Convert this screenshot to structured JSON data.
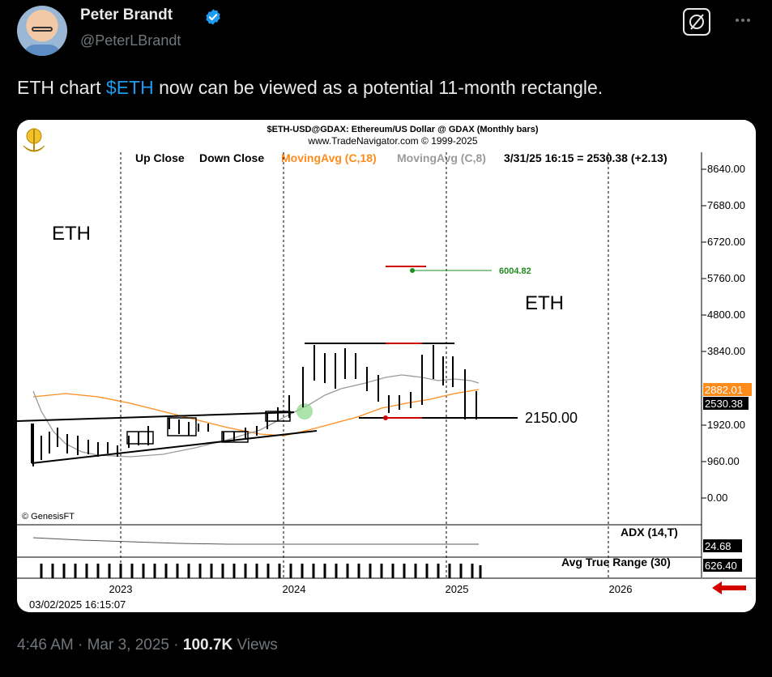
{
  "author": {
    "name": "Peter Brandt",
    "handle": "@PeterLBrandt"
  },
  "tweet": {
    "text_before": "ETH chart ",
    "cashtag": "$ETH",
    "text_after": " now can be viewed as a potential 11-month rectangle."
  },
  "meta": {
    "time": "4:46 AM",
    "date": "Mar 3, 2025",
    "views_count": "100.7K",
    "views_label": "Views",
    "sep": "·"
  },
  "icons": {
    "verified": "verified-badge-icon",
    "grok": "grok-icon",
    "more": "more-icon",
    "logo": "tradenavigator-logo-icon",
    "arrow": "red-left-arrow-icon"
  },
  "colors": {
    "accent": "#1d9bf0",
    "ma18": "#ff8c1a",
    "ma8": "#9a9a9a",
    "target": "#cc0000",
    "target_label": "#1f8c1f"
  },
  "chart": {
    "header_line1": "$ETH-USD@GDAX:  Ethereum/US Dollar @ GDAX  (Monthly bars)",
    "header_line2": "www.TradeNavigator.com © 1999-2025",
    "legend_up_close": "Up Close",
    "legend_down_close": "Down Close",
    "legend_ma18": "MovingAvg (C,18)",
    "legend_ma8": "MovingAvg (C,8)",
    "legend_last": "3/31/25 16:15 = 2530.38 (+2.13)",
    "label_eth_left": "ETH",
    "label_eth_right": "ETH",
    "level_label": "2150.00",
    "target_label": "6004.82",
    "copyright": "© GenesisFT",
    "adx_label": "ADX (14,T)",
    "adx_value": "24.68",
    "atr_label": "Avg True Range (30)",
    "atr_value": "626.40",
    "timestamp": "03/02/2025 16:15:07",
    "price_axis": [
      "8640.00",
      "7680.00",
      "6720.00",
      "5760.00",
      "4800.00",
      "3840.00",
      "1920.00",
      "960.00",
      "0.00"
    ],
    "price_tag_1": "2882.01",
    "price_tag_2": "2530.38",
    "year_labels": [
      "2023",
      "2024",
      "2025",
      "2026"
    ]
  }
}
